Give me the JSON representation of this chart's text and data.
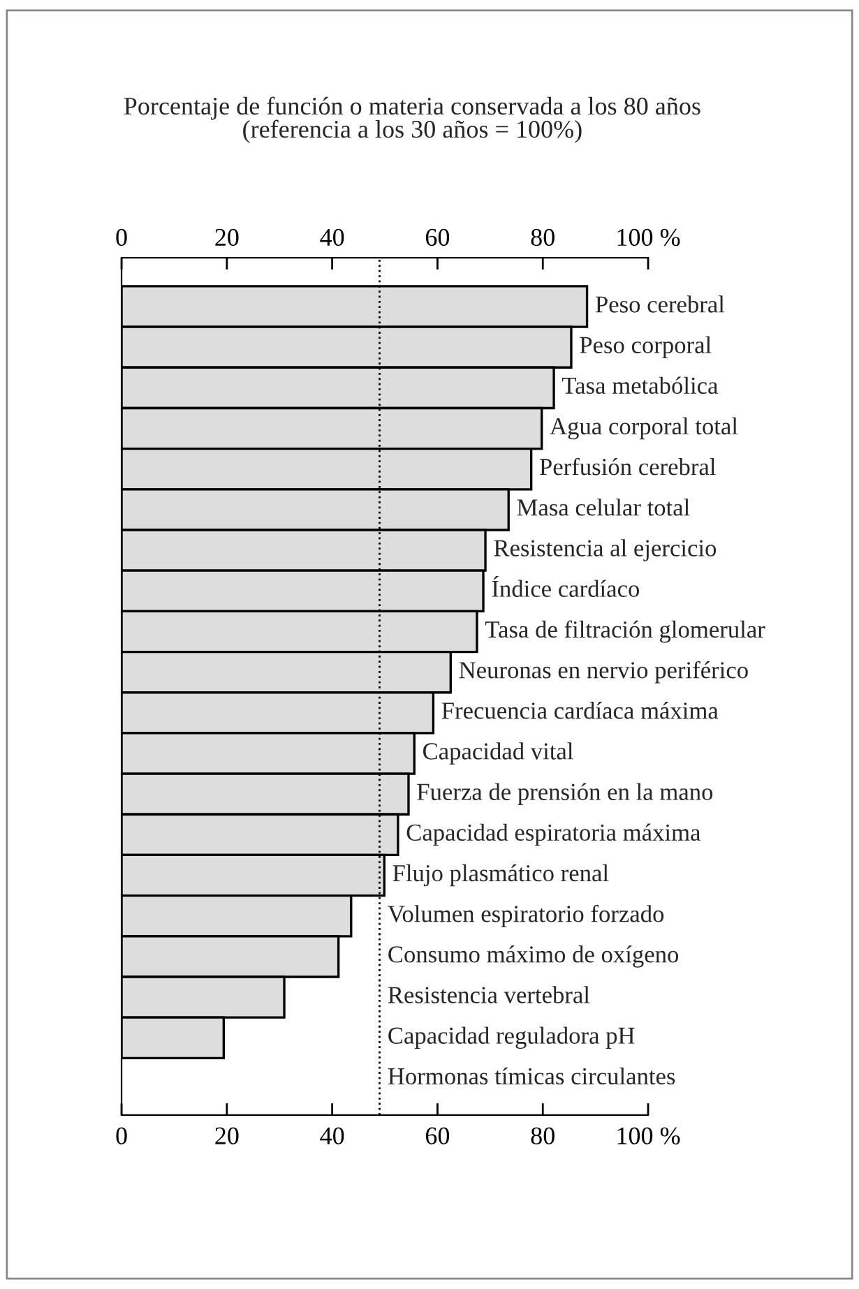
{
  "chart_data": {
    "type": "bar",
    "orientation": "horizontal",
    "title": "Porcentaje de función o materia conservada a los 80 años\n(referencia a los 30 años = 100%)",
    "categories": [
      "Peso cerebral",
      "Peso corporal",
      "Tasa metabólica",
      "Agua corporal total",
      "Perfusión cerebral",
      "Masa celular total",
      "Resistencia al ejercicio",
      "Índice cardíaco",
      "Tasa de filtración glomerular",
      "Neuronas en nervio periférico",
      "Frecuencia cardíaca máxima",
      "Capacidad vital",
      "Fuerza de prensión en la mano",
      "Capacidad espiratoria máxima",
      "Flujo plasmático renal",
      "Volumen espiratorio forzado",
      "Consumo máximo de oxígeno",
      "Resistencia vertebral",
      "Capacidad reguladora pH",
      "Hormonas tímicas circulantes"
    ],
    "values": [
      88.4,
      85.4,
      82.1,
      79.8,
      77.8,
      73.5,
      69.1,
      68.7,
      67.5,
      62.5,
      59.2,
      55.6,
      54.5,
      52.5,
      49.9,
      43.6,
      41.2,
      30.9,
      19.4,
      null
    ],
    "color": "#dddddd",
    "xlim": [
      0,
      100
    ],
    "xticks": [
      0,
      20,
      40,
      60,
      80,
      {
        "value": 100,
        "label": "100 %"
      }
    ],
    "x2lim": [
      0,
      100
    ],
    "x2ticks": [
      0,
      20,
      40,
      60,
      80,
      {
        "value": 100,
        "label": "100 %"
      }
    ],
    "ref_lines": [
      {
        "axis": "x",
        "value": 49,
        "color": "#000000",
        "line_style": "dotted"
      }
    ],
    "grid": false,
    "legend": false
  }
}
